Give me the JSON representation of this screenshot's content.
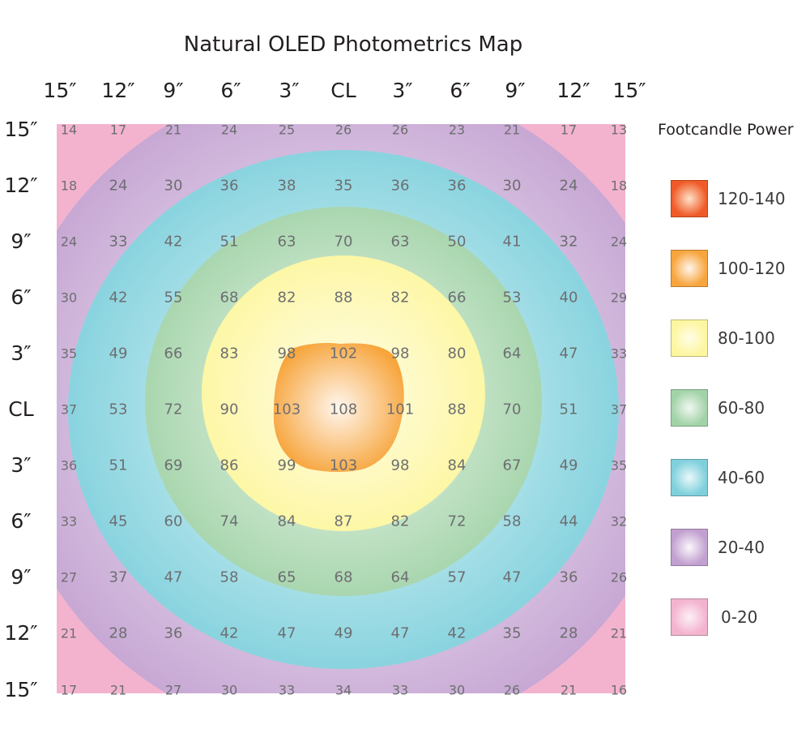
{
  "chart_data": {
    "type": "heatmap",
    "title": "Natural OLED Photometrics Map",
    "x_labels": [
      "15″",
      "12″",
      "9″",
      "6″",
      "3″",
      "CL",
      "3″",
      "6″",
      "9″",
      "12″",
      "15″"
    ],
    "y_labels": [
      "15″",
      "12″",
      "9″",
      "6″",
      "3″",
      "CL",
      "3″",
      "6″",
      "9″",
      "12″",
      "15″"
    ],
    "values": [
      [
        14,
        17,
        21,
        24,
        25,
        26,
        26,
        23,
        21,
        17,
        13
      ],
      [
        18,
        24,
        30,
        36,
        38,
        35,
        36,
        36,
        30,
        24,
        18
      ],
      [
        24,
        33,
        42,
        51,
        63,
        70,
        63,
        50,
        41,
        32,
        24
      ],
      [
        30,
        42,
        55,
        68,
        82,
        88,
        82,
        66,
        53,
        40,
        29
      ],
      [
        35,
        49,
        66,
        83,
        98,
        102,
        98,
        80,
        64,
        47,
        33
      ],
      [
        37,
        53,
        72,
        90,
        103,
        108,
        101,
        88,
        70,
        51,
        37
      ],
      [
        36,
        51,
        69,
        86,
        99,
        103,
        98,
        84,
        67,
        49,
        35
      ],
      [
        33,
        45,
        60,
        74,
        84,
        87,
        82,
        72,
        58,
        44,
        32
      ],
      [
        27,
        37,
        47,
        58,
        65,
        68,
        64,
        57,
        47,
        36,
        26
      ],
      [
        21,
        28,
        36,
        42,
        47,
        49,
        47,
        42,
        35,
        28,
        21
      ],
      [
        17,
        21,
        27,
        30,
        33,
        34,
        33,
        30,
        26,
        21,
        16
      ]
    ],
    "legend": {
      "title": "Footcandle Power",
      "placement": "right",
      "bins": [
        {
          "label": "120-140",
          "min": 120,
          "max": 140,
          "color": "#f05a28",
          "center_color": "#fde3c8"
        },
        {
          "label": "100-120",
          "min": 100,
          "max": 120,
          "color": "#f7a53c",
          "center_color": "#fff6ee"
        },
        {
          "label": "80-100",
          "min": 80,
          "max": 100,
          "color": "#fdf6a0",
          "center_color": "#fffde8"
        },
        {
          "label": "60-80",
          "min": 60,
          "max": 80,
          "color": "#a2d3a8",
          "center_color": "#f1f8f1"
        },
        {
          "label": "40-60",
          "min": 40,
          "max": 60,
          "color": "#7fd0dc",
          "center_color": "#eaf8fa"
        },
        {
          "label": "20-40",
          "min": 20,
          "max": 40,
          "color": "#c2a0d0",
          "center_color": "#fbf7fc"
        },
        {
          "label": "0-20",
          "min": 0,
          "max": 20,
          "color": "#f3b3cf",
          "center_color": "#fdf0f5"
        }
      ]
    },
    "value_text_color": "#6d6e71"
  }
}
